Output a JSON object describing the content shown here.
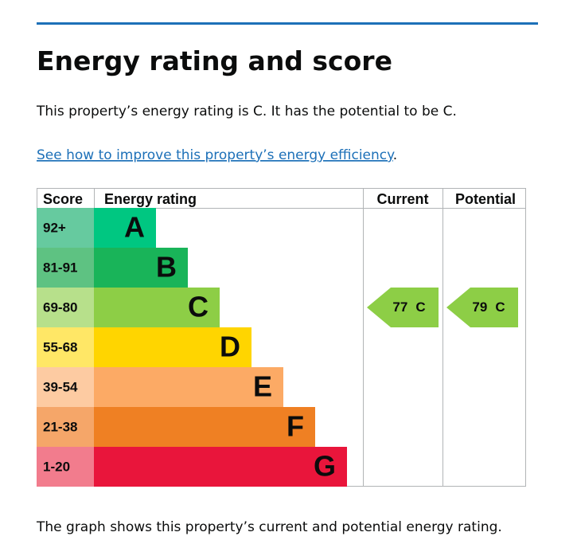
{
  "header": {
    "title": "Energy rating and score"
  },
  "intro": "This property’s energy rating is C. It has the potential to be C.",
  "link": {
    "text": "See how to improve this property’s energy efficiency",
    "after": "."
  },
  "graph": {
    "headers": [
      "Score",
      "Energy rating",
      "Current",
      "Potential"
    ],
    "bands": [
      {
        "score": "92+",
        "letter": "A",
        "color": "#00c781",
        "score_color": "#66ca9f"
      },
      {
        "score": "81-91",
        "letter": "B",
        "color": "#19b459",
        "score_color": "#5ec282"
      },
      {
        "score": "69-80",
        "letter": "C",
        "color": "#8dce46",
        "score_color": "#b7e08b"
      },
      {
        "score": "55-68",
        "letter": "D",
        "color": "#ffd500",
        "score_color": "#ffe766"
      },
      {
        "score": "39-54",
        "letter": "E",
        "color": "#fcaa65",
        "score_color": "#fdcba2"
      },
      {
        "score": "21-38",
        "letter": "F",
        "color": "#ef8023",
        "score_color": "#f5a669"
      },
      {
        "score": "1-20",
        "letter": "G",
        "color": "#e9153b",
        "score_color": "#f27c8d"
      }
    ],
    "current": {
      "score": 77,
      "rating": "C"
    },
    "potential": {
      "score": 79,
      "rating": "C"
    },
    "marker_color": "#8dce46"
  },
  "footer": "The graph shows this property’s current and potential energy rating."
}
